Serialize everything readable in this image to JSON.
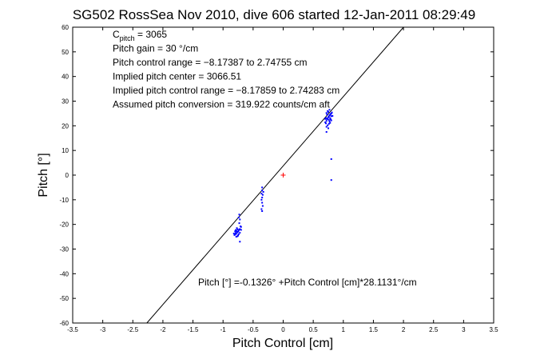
{
  "chart_data": {
    "type": "scatter",
    "title": "SG502 RossSea Nov 2010, dive 606 started 12-Jan-2011 08:29:49",
    "xlabel": "Pitch Control [cm]",
    "ylabel": "Pitch [°]",
    "xlim": [
      -3.5,
      3.5
    ],
    "ylim": [
      -60,
      60
    ],
    "xticks": [
      -3.5,
      -3,
      -2.5,
      -2,
      -1.5,
      -1,
      -0.5,
      0,
      0.5,
      1,
      1.5,
      2,
      2.5,
      3,
      3.5
    ],
    "yticks": [
      -60,
      -50,
      -40,
      -30,
      -20,
      -10,
      0,
      10,
      20,
      30,
      40,
      50,
      60
    ],
    "grid": false,
    "fit_line": {
      "intercept_cm": -0.1326,
      "slope_deg_per_cm": 28.1131,
      "color": "#000000"
    },
    "center_marker": {
      "x": 0,
      "y": 0,
      "color": "#ff0000"
    },
    "series": [
      {
        "color": "#0000ff",
        "points": [
          [
            -0.74,
            -22.5
          ],
          [
            -0.76,
            -23.2
          ],
          [
            -0.78,
            -23.8
          ],
          [
            -0.8,
            -24.1
          ],
          [
            -0.72,
            -21.9
          ],
          [
            -0.7,
            -21.0
          ],
          [
            -0.75,
            -22.9
          ],
          [
            -0.79,
            -23.5
          ],
          [
            -0.81,
            -24.3
          ],
          [
            -0.73,
            -22.1
          ],
          [
            -0.77,
            -23.0
          ],
          [
            -0.71,
            -20.8
          ],
          [
            -0.74,
            -24.0
          ],
          [
            -0.76,
            -22.0
          ],
          [
            -0.78,
            -22.6
          ],
          [
            -0.72,
            -23.4
          ],
          [
            -0.8,
            -22.8
          ],
          [
            -0.75,
            -24.5
          ],
          [
            -0.73,
            -19.5
          ],
          [
            -0.72,
            -18.0
          ],
          [
            -0.74,
            -17.2
          ],
          [
            -0.73,
            -16.0
          ],
          [
            -0.78,
            -25.0
          ],
          [
            -0.76,
            -24.8
          ],
          [
            -0.7,
            -22.2
          ],
          [
            -0.77,
            -21.5
          ],
          [
            -0.79,
            -22.3
          ],
          [
            -0.82,
            -23.7
          ],
          [
            -0.72,
            -27.0
          ],
          [
            -0.35,
            -5.0
          ],
          [
            -0.35,
            -6.2
          ],
          [
            -0.36,
            -7.5
          ],
          [
            -0.34,
            -8.0
          ],
          [
            -0.35,
            -9.1
          ],
          [
            -0.36,
            -10.0
          ],
          [
            -0.35,
            -11.2
          ],
          [
            -0.34,
            -12.5
          ],
          [
            -0.36,
            -13.8
          ],
          [
            -0.35,
            -14.6
          ],
          [
            -0.33,
            -6.8
          ],
          [
            0.72,
            22.0
          ],
          [
            0.74,
            23.0
          ],
          [
            0.76,
            23.8
          ],
          [
            0.78,
            24.5
          ],
          [
            0.8,
            25.0
          ],
          [
            0.7,
            21.4
          ],
          [
            0.73,
            22.7
          ],
          [
            0.75,
            23.5
          ],
          [
            0.77,
            24.2
          ],
          [
            0.79,
            24.8
          ],
          [
            0.81,
            25.4
          ],
          [
            0.71,
            21.0
          ],
          [
            0.74,
            20.2
          ],
          [
            0.72,
            19.6
          ],
          [
            0.76,
            22.4
          ],
          [
            0.78,
            23.1
          ],
          [
            0.8,
            23.9
          ],
          [
            0.75,
            25.6
          ],
          [
            0.73,
            24.6
          ],
          [
            0.77,
            21.8
          ],
          [
            0.79,
            22.6
          ],
          [
            0.71,
            23.2
          ],
          [
            0.82,
            24.0
          ],
          [
            0.74,
            26.0
          ],
          [
            0.76,
            20.8
          ],
          [
            0.7,
            22.8
          ],
          [
            0.78,
            21.2
          ],
          [
            0.8,
            22.2
          ],
          [
            0.72,
            25.2
          ],
          [
            0.75,
            19.0
          ],
          [
            0.72,
            17.5
          ],
          [
            0.77,
            26.5
          ],
          [
            0.8,
            6.5
          ],
          [
            0.8,
            -2.0
          ]
        ]
      }
    ],
    "annotations": [
      {
        "main": "C",
        "sub": "pitch",
        "rest": " = 3065"
      },
      {
        "main": "Pitch gain = 30 °/cm"
      },
      {
        "main": "Pitch control range = −8.17387 to 2.74755 cm"
      },
      {
        "main": "Implied pitch center = 3066.51"
      },
      {
        "main": "Implied pitch control range = −8.17859 to 2.74283 cm"
      },
      {
        "main": "Assumed pitch conversion = 319.922 counts/cm aft"
      }
    ],
    "equation": "Pitch [°] =-0.1326° +Pitch Control [cm]*28.1131°/cm"
  }
}
